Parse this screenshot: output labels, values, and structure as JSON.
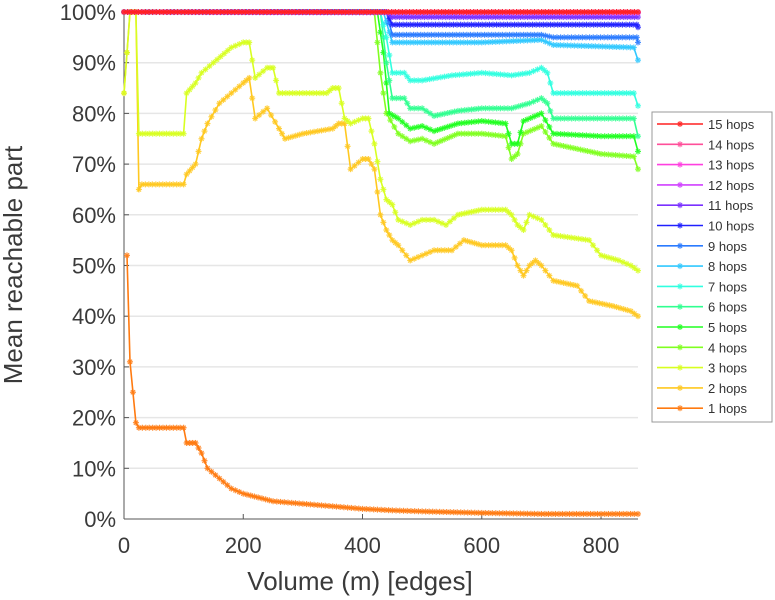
{
  "chart_data": {
    "type": "line",
    "title": "",
    "xlabel": "Volume (m) [edges]",
    "ylabel": "Mean reachable part",
    "xlim": [
      0,
      862
    ],
    "ylim": [
      0,
      100
    ],
    "xticks": [
      "0",
      "200",
      "400",
      "600",
      "800"
    ],
    "xtick_values": [
      0,
      200,
      400,
      600,
      800
    ],
    "yticks": [
      "0%",
      "10%",
      "20%",
      "30%",
      "40%",
      "50%",
      "60%",
      "70%",
      "80%",
      "90%",
      "100%"
    ],
    "ytick_values": [
      0,
      10,
      20,
      30,
      40,
      50,
      60,
      70,
      80,
      90,
      100
    ],
    "grid": true,
    "legend_position": "right",
    "series": [
      {
        "name": "15 hops",
        "color": "#ff2020",
        "points": [
          [
            0,
            100
          ],
          [
            862,
            100
          ]
        ]
      },
      {
        "name": "14 hops",
        "color": "#ff4f9a",
        "points": [
          [
            0,
            100
          ],
          [
            862,
            100
          ]
        ]
      },
      {
        "name": "13 hops",
        "color": "#ff40e0",
        "points": [
          [
            0,
            100
          ],
          [
            862,
            100
          ]
        ]
      },
      {
        "name": "12 hops",
        "color": "#d040ff",
        "points": [
          [
            0,
            100
          ],
          [
            862,
            99.8
          ]
        ]
      },
      {
        "name": "11 hops",
        "color": "#7a30ff",
        "points": [
          [
            0,
            100
          ],
          [
            440,
            100
          ],
          [
            450,
            99
          ],
          [
            862,
            99
          ]
        ]
      },
      {
        "name": "10 hops",
        "color": "#2020ff",
        "points": [
          [
            0,
            100
          ],
          [
            440,
            100
          ],
          [
            450,
            97.5
          ],
          [
            860,
            97.5
          ],
          [
            862,
            97
          ]
        ]
      },
      {
        "name": "9 hops",
        "color": "#2a7bff",
        "points": [
          [
            0,
            100
          ],
          [
            440,
            100
          ],
          [
            450,
            95.5
          ],
          [
            700,
            95.5
          ],
          [
            720,
            95
          ],
          [
            860,
            95
          ],
          [
            862,
            94
          ]
        ]
      },
      {
        "name": "8 hops",
        "color": "#30c8ff",
        "points": [
          [
            0,
            100
          ],
          [
            435,
            100
          ],
          [
            450,
            94
          ],
          [
            600,
            94
          ],
          [
            700,
            94.5
          ],
          [
            720,
            93.5
          ],
          [
            855,
            93
          ],
          [
            862,
            90.5
          ]
        ]
      },
      {
        "name": "7 hops",
        "color": "#30ffe0",
        "points": [
          [
            0,
            100
          ],
          [
            430,
            100
          ],
          [
            440,
            95
          ],
          [
            450,
            88
          ],
          [
            470,
            88
          ],
          [
            480,
            86.5
          ],
          [
            500,
            86.5
          ],
          [
            550,
            87.5
          ],
          [
            600,
            88
          ],
          [
            650,
            87.5
          ],
          [
            680,
            88
          ],
          [
            700,
            89
          ],
          [
            710,
            88
          ],
          [
            720,
            84
          ],
          [
            800,
            84
          ],
          [
            855,
            84
          ],
          [
            862,
            81.5
          ]
        ]
      },
      {
        "name": "6 hops",
        "color": "#30ff90",
        "points": [
          [
            0,
            100
          ],
          [
            430,
            100
          ],
          [
            440,
            90
          ],
          [
            450,
            83
          ],
          [
            470,
            83
          ],
          [
            480,
            81
          ],
          [
            500,
            81
          ],
          [
            520,
            79.5
          ],
          [
            560,
            80.5
          ],
          [
            600,
            81
          ],
          [
            650,
            81
          ],
          [
            680,
            82
          ],
          [
            700,
            83
          ],
          [
            710,
            82
          ],
          [
            720,
            79
          ],
          [
            800,
            79
          ],
          [
            855,
            79
          ],
          [
            862,
            75.5
          ]
        ]
      },
      {
        "name": "5 hops",
        "color": "#20ff20",
        "points": [
          [
            0,
            100
          ],
          [
            425,
            100
          ],
          [
            435,
            92
          ],
          [
            445,
            80
          ],
          [
            460,
            79
          ],
          [
            480,
            77
          ],
          [
            500,
            77.5
          ],
          [
            520,
            76.5
          ],
          [
            560,
            78
          ],
          [
            600,
            78.5
          ],
          [
            640,
            78
          ],
          [
            650,
            74
          ],
          [
            660,
            74
          ],
          [
            670,
            78.5
          ],
          [
            700,
            80
          ],
          [
            720,
            76
          ],
          [
            800,
            75.5
          ],
          [
            855,
            75.5
          ],
          [
            862,
            72.5
          ]
        ]
      },
      {
        "name": "4 hops",
        "color": "#80ff20",
        "points": [
          [
            0,
            100
          ],
          [
            420,
            100
          ],
          [
            430,
            88
          ],
          [
            440,
            80
          ],
          [
            460,
            76
          ],
          [
            480,
            74.5
          ],
          [
            500,
            75
          ],
          [
            520,
            74
          ],
          [
            560,
            76
          ],
          [
            600,
            76
          ],
          [
            640,
            75.5
          ],
          [
            650,
            71
          ],
          [
            660,
            72
          ],
          [
            670,
            76
          ],
          [
            700,
            77.5
          ],
          [
            720,
            74
          ],
          [
            760,
            73
          ],
          [
            800,
            72
          ],
          [
            855,
            71.5
          ],
          [
            862,
            69
          ]
        ]
      },
      {
        "name": "3 hops",
        "color": "#d8ff20",
        "points": [
          [
            0,
            84
          ],
          [
            10,
            100
          ],
          [
            20,
            100
          ],
          [
            25,
            76
          ],
          [
            100,
            76
          ],
          [
            105,
            84
          ],
          [
            120,
            86
          ],
          [
            130,
            88
          ],
          [
            150,
            90
          ],
          [
            180,
            93
          ],
          [
            200,
            94
          ],
          [
            210,
            94
          ],
          [
            220,
            87
          ],
          [
            240,
            89
          ],
          [
            250,
            89
          ],
          [
            260,
            84
          ],
          [
            300,
            84
          ],
          [
            340,
            84
          ],
          [
            350,
            85
          ],
          [
            360,
            85
          ],
          [
            370,
            79
          ],
          [
            380,
            78
          ],
          [
            400,
            79
          ],
          [
            410,
            79
          ],
          [
            420,
            74
          ],
          [
            430,
            67
          ],
          [
            440,
            63
          ],
          [
            450,
            62
          ],
          [
            460,
            59
          ],
          [
            480,
            58
          ],
          [
            500,
            59
          ],
          [
            520,
            59
          ],
          [
            540,
            58
          ],
          [
            560,
            60
          ],
          [
            600,
            61
          ],
          [
            640,
            61
          ],
          [
            650,
            60
          ],
          [
            660,
            58
          ],
          [
            670,
            57
          ],
          [
            680,
            60
          ],
          [
            700,
            59
          ],
          [
            720,
            56
          ],
          [
            780,
            55
          ],
          [
            800,
            52
          ],
          [
            830,
            51
          ],
          [
            850,
            50
          ],
          [
            862,
            49
          ]
        ]
      },
      {
        "name": "2 hops",
        "color": "#ffc820",
        "points": [
          [
            0,
            84
          ],
          [
            10,
            100
          ],
          [
            20,
            100
          ],
          [
            25,
            65
          ],
          [
            30,
            66
          ],
          [
            100,
            66
          ],
          [
            105,
            68
          ],
          [
            120,
            70
          ],
          [
            130,
            75
          ],
          [
            140,
            78
          ],
          [
            160,
            82
          ],
          [
            180,
            84
          ],
          [
            200,
            86
          ],
          [
            210,
            87
          ],
          [
            220,
            79
          ],
          [
            240,
            81
          ],
          [
            260,
            77
          ],
          [
            270,
            75
          ],
          [
            300,
            76
          ],
          [
            350,
            77
          ],
          [
            360,
            78
          ],
          [
            370,
            78
          ],
          [
            380,
            69
          ],
          [
            400,
            71
          ],
          [
            410,
            71
          ],
          [
            420,
            69
          ],
          [
            430,
            60
          ],
          [
            440,
            57
          ],
          [
            450,
            55
          ],
          [
            460,
            54
          ],
          [
            480,
            51
          ],
          [
            500,
            52
          ],
          [
            520,
            53
          ],
          [
            550,
            53
          ],
          [
            570,
            55
          ],
          [
            600,
            54
          ],
          [
            640,
            54
          ],
          [
            650,
            53
          ],
          [
            660,
            50
          ],
          [
            670,
            48
          ],
          [
            680,
            50
          ],
          [
            690,
            51
          ],
          [
            700,
            50
          ],
          [
            720,
            47
          ],
          [
            760,
            46
          ],
          [
            780,
            43
          ],
          [
            820,
            42
          ],
          [
            850,
            41
          ],
          [
            862,
            40
          ]
        ]
      },
      {
        "name": "1 hops",
        "color": "#ff7a10",
        "points": [
          [
            5,
            52
          ],
          [
            10,
            31
          ],
          [
            20,
            19
          ],
          [
            25,
            18
          ],
          [
            100,
            18
          ],
          [
            105,
            15
          ],
          [
            120,
            15
          ],
          [
            130,
            13
          ],
          [
            140,
            10
          ],
          [
            160,
            8
          ],
          [
            180,
            6
          ],
          [
            200,
            5
          ],
          [
            250,
            3.5
          ],
          [
            300,
            3
          ],
          [
            350,
            2.5
          ],
          [
            400,
            2
          ],
          [
            450,
            1.7
          ],
          [
            500,
            1.5
          ],
          [
            600,
            1.2
          ],
          [
            700,
            1
          ],
          [
            800,
            1
          ],
          [
            862,
            1
          ]
        ]
      }
    ]
  }
}
